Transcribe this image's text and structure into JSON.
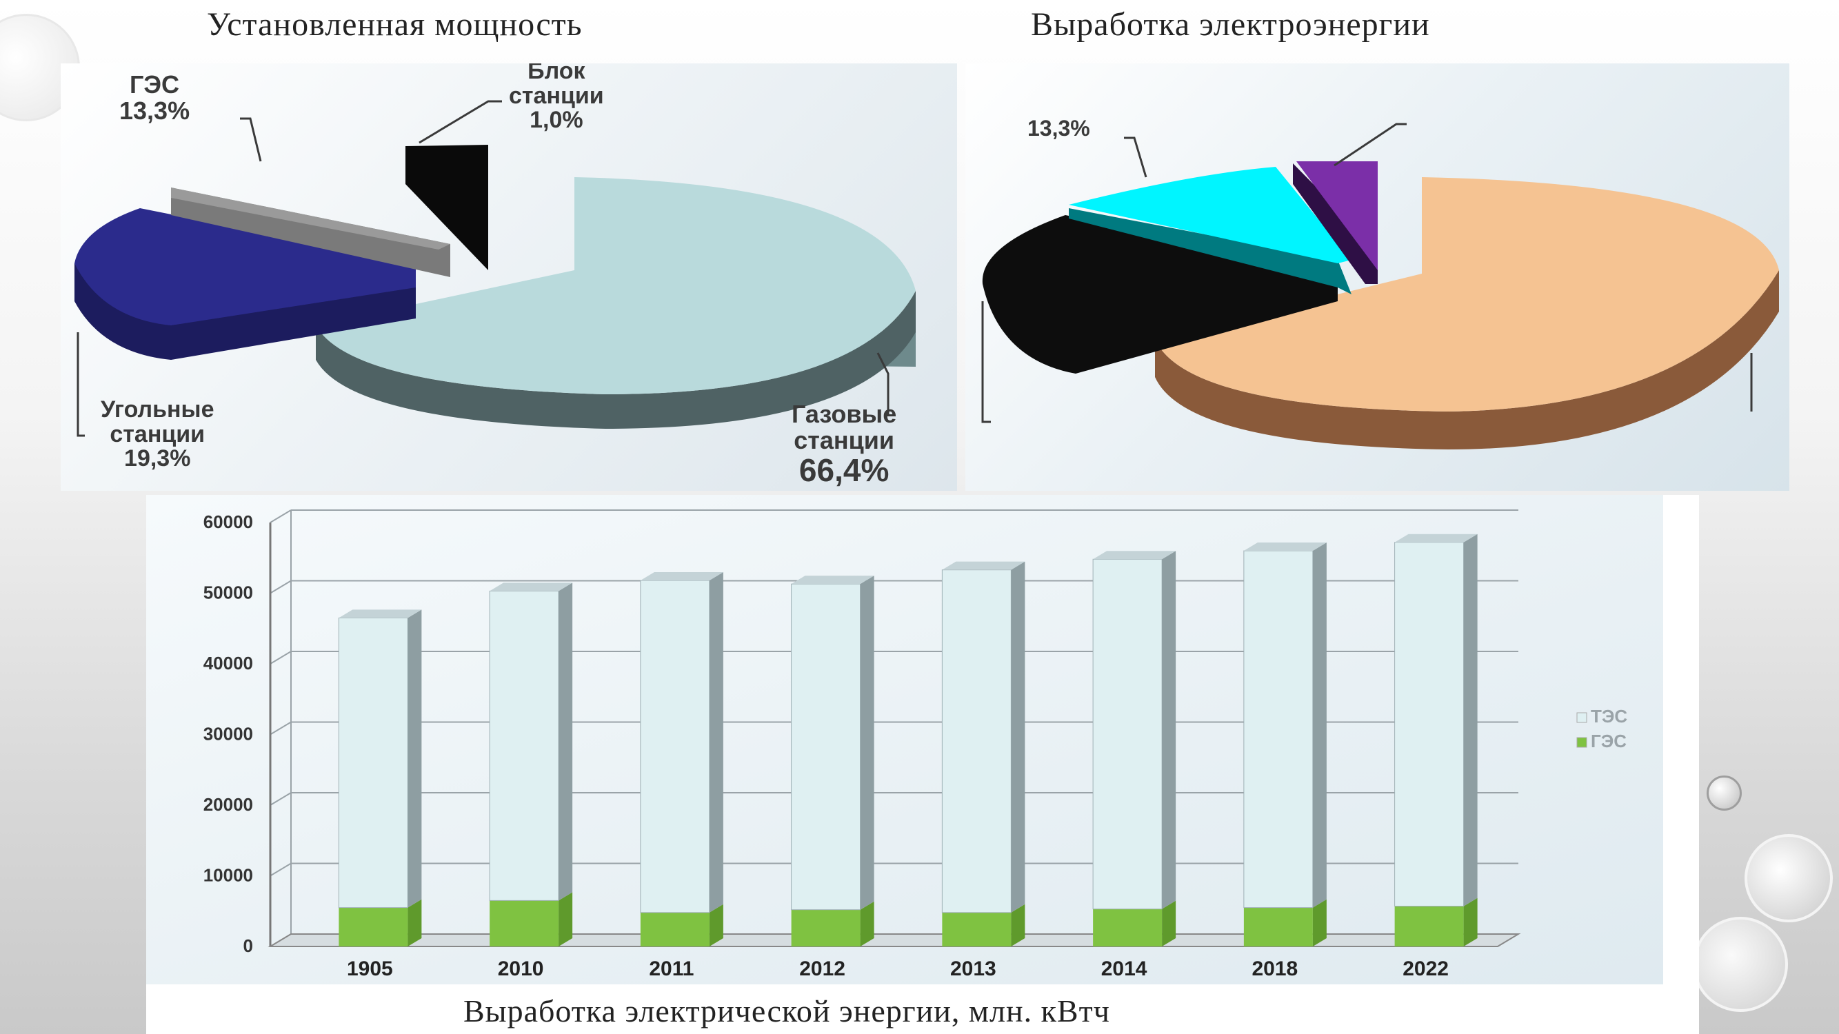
{
  "chart_data": [
    {
      "type": "pie",
      "title": "Установленная мощность",
      "slices": [
        {
          "label": "Газовые станции",
          "value": 66.4,
          "value_label": "66,4%",
          "color": "#b9dadc"
        },
        {
          "label": "Угольные станции",
          "value": 19.3,
          "value_label": "19,3%",
          "color": "#2b2b8c"
        },
        {
          "label": "ГЭС",
          "value": 13.3,
          "value_label": "13,3%",
          "color": "#7a7a7a"
        },
        {
          "label": "Блок станции",
          "value": 1.0,
          "value_label": "1,0%",
          "color": "#0a0a0a"
        }
      ],
      "labels": {
        "ges_name": "ГЭС",
        "ges_value": "13,3%",
        "blok_line1": "Блок",
        "blok_line2": "станции",
        "blok_value": "1,0%",
        "coal_line1": "Угольные",
        "coal_line2": "станции",
        "coal_value": "19,3%",
        "gas_line1": "Газовые",
        "gas_line2": "станции",
        "gas_value": "66,4%"
      }
    },
    {
      "type": "pie",
      "title": "Выработка электроэнергии",
      "slices": [
        {
          "label": "",
          "value": 62.0,
          "color": "#f5c392"
        },
        {
          "label": "",
          "value": 21.0,
          "color": "#0d0d0d"
        },
        {
          "label": "",
          "value": 13.3,
          "value_label": "13,3%",
          "color": "#00f5ff"
        },
        {
          "label": "",
          "value": 3.7,
          "color": "#7b2fa8"
        }
      ],
      "labels": {
        "cyan_value": "13,3%"
      }
    },
    {
      "type": "bar",
      "stacked": true,
      "title": "Выработка электрической энергии, млн. кВтч",
      "categories": [
        "1905",
        "2010",
        "2011",
        "2012",
        "2013",
        "2014",
        "2018",
        "2022"
      ],
      "series": [
        {
          "name": "ГЭС",
          "color": "#7fc241",
          "values": [
            5500,
            6500,
            4800,
            5200,
            4800,
            5300,
            5500,
            5700
          ]
        },
        {
          "name": "ТЭС",
          "color": "#dff0f2",
          "values": [
            41000,
            43800,
            47000,
            46100,
            48500,
            49500,
            50500,
            51500
          ]
        }
      ],
      "ylim": [
        0,
        60000
      ],
      "yticks": [
        0,
        10000,
        20000,
        30000,
        40000,
        50000,
        60000
      ],
      "ytick_labels": [
        "0",
        "10000",
        "20000",
        "30000",
        "40000",
        "50000",
        "60000"
      ],
      "legend": [
        "ТЭС",
        "ГЭС"
      ],
      "legend_position": "right",
      "grid": true
    }
  ],
  "colors": {
    "gas": "#b9dadc",
    "coal": "#2b2b8c",
    "ges_gray": "#7a7a7a",
    "tes_bar": "#dff0f2",
    "ges_bar": "#7fc241"
  }
}
